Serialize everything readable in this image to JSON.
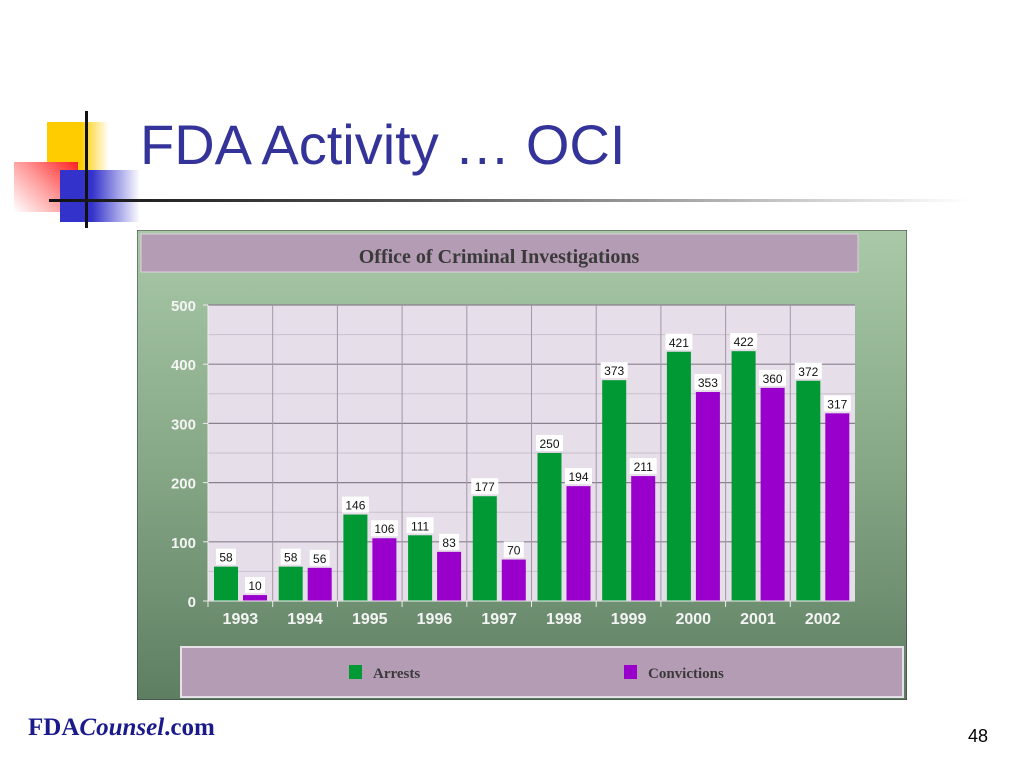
{
  "slide": {
    "title": "FDA Activity … OCI",
    "footer_brand_a": "FDA",
    "footer_brand_b": "Counsel",
    "footer_brand_c": ".com",
    "page_number": "48"
  },
  "chart_data": {
    "type": "bar",
    "title": "Office of Criminal Investigations",
    "categories": [
      "1993",
      "1994",
      "1995",
      "1996",
      "1997",
      "1998",
      "1999",
      "2000",
      "2001",
      "2002"
    ],
    "series": [
      {
        "name": "Arrests",
        "color": "#009933",
        "values": [
          58,
          58,
          146,
          111,
          177,
          250,
          373,
          421,
          422,
          372
        ]
      },
      {
        "name": "Convictions",
        "color": "#9900cc",
        "values": [
          10,
          56,
          106,
          83,
          70,
          194,
          211,
          353,
          360,
          317
        ]
      }
    ],
    "ylim": [
      0,
      500
    ],
    "yticks": [
      0,
      100,
      200,
      300,
      400,
      500
    ],
    "grid": true,
    "legend": "bottom",
    "data_labels": true
  }
}
